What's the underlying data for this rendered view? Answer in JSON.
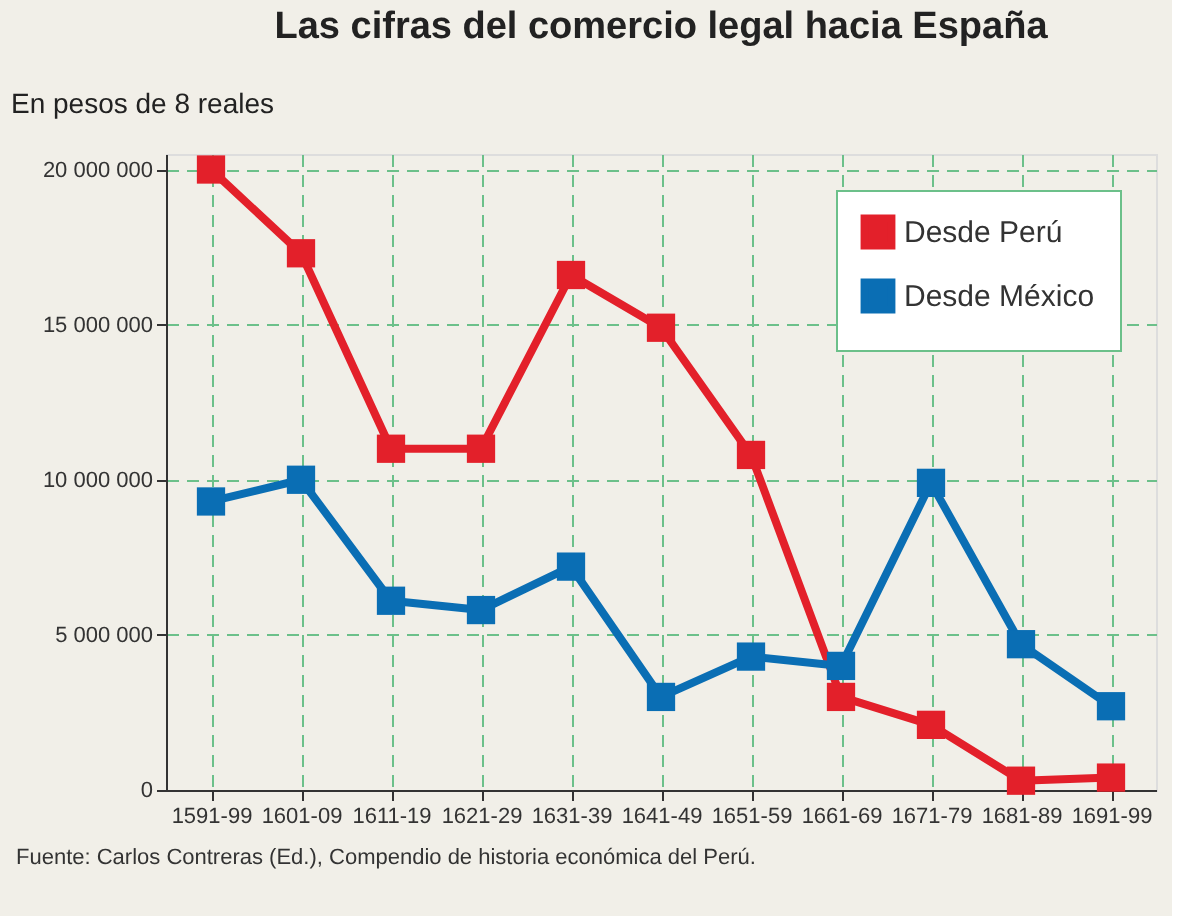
{
  "chart_data": {
    "type": "line",
    "title": "Las cifras del comercio legal hacia España",
    "ylabel": "En pesos de 8 reales",
    "categories": [
      "1591-99",
      "1601-09",
      "1611-19",
      "1621-29",
      "1631-39",
      "1641-49",
      "1651-59",
      "1661-69",
      "1671-79",
      "1681-89",
      "1691-99"
    ],
    "series": [
      {
        "name": "Desde Perú",
        "color": "#e3202a",
        "values": [
          20000000,
          17300000,
          11000000,
          11000000,
          16600000,
          14900000,
          10800000,
          3000000,
          2100000,
          300000,
          400000
        ]
      },
      {
        "name": "Desde México",
        "color": "#0a6eb4",
        "values": [
          9300000,
          10000000,
          6100000,
          5800000,
          7200000,
          3000000,
          4300000,
          4000000,
          9900000,
          4700000,
          2700000
        ]
      }
    ],
    "ylim": [
      0,
      20500000
    ],
    "yticks": [
      0,
      {
        "value": 5000000,
        "label": "5 000 000"
      },
      {
        "value": 10000000,
        "label": "10 000 000"
      },
      {
        "value": 15000000,
        "label": "15 000 000"
      },
      {
        "value": 20000000,
        "label": "20 000 000"
      }
    ],
    "grid": true,
    "legend": "top right",
    "marker": "square",
    "line_style": "solid",
    "annotations": [
      "Fuente: Carlos Contreras (Ed.), Compendio de historia económica del Perú."
    ]
  }
}
